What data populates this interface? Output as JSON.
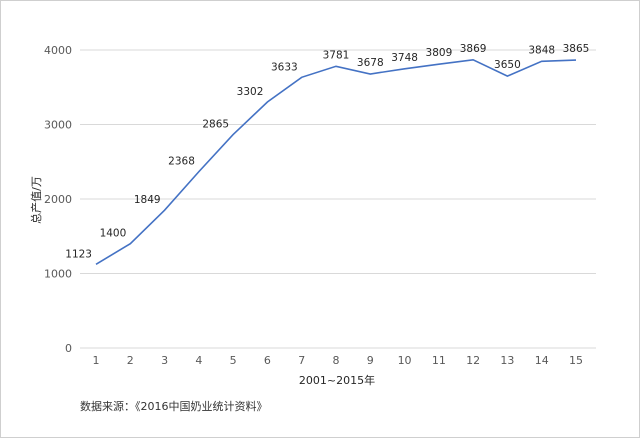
{
  "chart_data": {
    "type": "line",
    "x": [
      1,
      2,
      3,
      4,
      5,
      6,
      7,
      8,
      9,
      10,
      11,
      12,
      13,
      14,
      15
    ],
    "values": [
      1123,
      1400,
      1849,
      2368,
      2865,
      3302,
      3633,
      3781,
      3678,
      3748,
      3809,
      3869,
      3650,
      3848,
      3865
    ],
    "xlabel": "2001~2015年",
    "ylabel": "总产值/万",
    "ylim": [
      0,
      4000
    ],
    "yticks": [
      0,
      1000,
      2000,
      3000,
      4000
    ],
    "grid": true,
    "line_color": "#4472c4",
    "grid_color": "#d9d9d9"
  },
  "source_note": "数据来源：《2016中国奶业统计资料》"
}
